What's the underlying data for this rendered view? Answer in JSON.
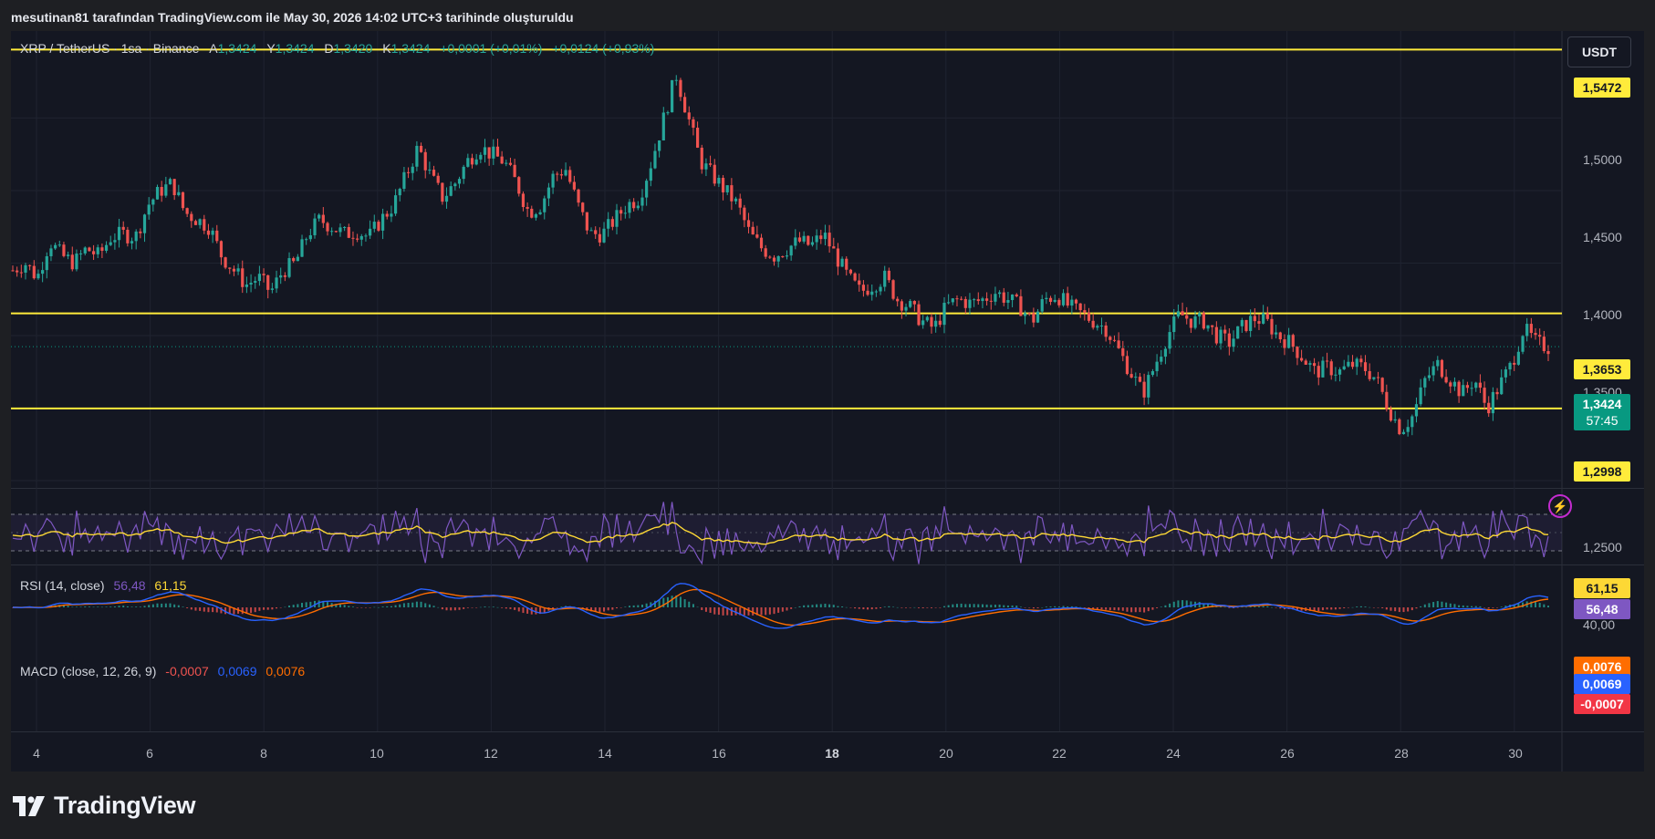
{
  "header": {
    "caption": "mesutinan81 tarafından TradingView.com ile May 30, 2026 14:02 UTC+3 tarihinde oluşturuldu"
  },
  "symbol": {
    "name": "XRP / TetherUS · 1sa · Binance",
    "o_label": "A",
    "o": "1,3424",
    "h_label": "Y",
    "h": "1,3424",
    "l_label": "D",
    "l": "1,3420",
    "c_label": "K",
    "c": "1,3424",
    "change": "+0,0001 (+0,01%)",
    "change2": "+0,0124 (+0,93%)"
  },
  "currency": "USDT",
  "price_axis": {
    "ticks": [
      "1,5000",
      "1,4500",
      "1,4000",
      "1,3500",
      "1,2500"
    ],
    "levels": [
      "1,5472",
      "1,3653",
      "1,2998"
    ],
    "current_price": "1,3424",
    "countdown": "57:45"
  },
  "rsi": {
    "title": "RSI (14, close)",
    "value": "56,48",
    "ma": "61,15",
    "axis_tick": "40,00"
  },
  "macd": {
    "title": "MACD (close, 12, 26, 9)",
    "hist": "-0,0007",
    "macd": "0,0069",
    "signal": "0,0076"
  },
  "time_axis": {
    "ticks": [
      "4",
      "6",
      "8",
      "10",
      "12",
      "14",
      "16",
      "18",
      "20",
      "22",
      "24",
      "26",
      "28",
      "30"
    ]
  },
  "colors": {
    "up": "#26a69a",
    "down": "#ef5350",
    "level": "#ffeb3b",
    "rsi": "#7e57c2",
    "rsi_ma": "#fdd835",
    "macd": "#2962ff",
    "signal": "#ff6d00",
    "price_tag": "#089981"
  },
  "icons": {
    "alert": "lightning-icon",
    "logo": "tradingview-logo"
  },
  "brand": "TradingView",
  "chart_data": {
    "type": "candlestick",
    "ylim": [
      1.245,
      1.56
    ],
    "horizontal_levels": [
      1.5472,
      1.3653,
      1.2998
    ],
    "close_path": [
      1.395,
      1.4,
      1.39,
      1.415,
      1.405,
      1.4,
      1.41,
      1.405,
      1.418,
      1.42,
      1.418,
      1.44,
      1.45,
      1.455,
      1.435,
      1.43,
      1.425,
      1.405,
      1.395,
      1.385,
      1.39,
      1.38,
      1.395,
      1.4,
      1.42,
      1.43,
      1.425,
      1.42,
      1.422,
      1.418,
      1.43,
      1.44,
      1.46,
      1.48,
      1.46,
      1.445,
      1.455,
      1.47,
      1.48,
      1.475,
      1.47,
      1.455,
      1.435,
      1.44,
      1.46,
      1.465,
      1.44,
      1.42,
      1.42,
      1.43,
      1.44,
      1.445,
      1.47,
      1.5,
      1.53,
      1.5,
      1.47,
      1.46,
      1.45,
      1.44,
      1.42,
      1.41,
      1.405,
      1.41,
      1.415,
      1.412,
      1.42,
      1.405,
      1.39,
      1.38,
      1.385,
      1.39,
      1.375,
      1.37,
      1.36,
      1.355,
      1.37,
      1.375,
      1.372,
      1.375,
      1.38,
      1.375,
      1.37,
      1.36,
      1.375,
      1.378,
      1.37,
      1.365,
      1.36,
      1.355,
      1.34,
      1.325,
      1.31,
      1.33,
      1.35,
      1.365,
      1.36,
      1.36,
      1.35,
      1.345,
      1.355,
      1.362,
      1.36,
      1.35,
      1.345,
      1.335,
      1.325,
      1.328,
      1.325,
      1.33,
      1.328,
      1.32,
      1.3,
      1.285,
      1.295,
      1.32,
      1.33,
      1.32,
      1.31,
      1.32,
      1.3,
      1.315,
      1.33,
      1.355,
      1.345,
      1.342
    ],
    "rsi_axis_ticks": [
      40
    ],
    "time_ticks": [
      4,
      6,
      8,
      10,
      12,
      14,
      16,
      18,
      20,
      22,
      24,
      26,
      28,
      30
    ]
  }
}
